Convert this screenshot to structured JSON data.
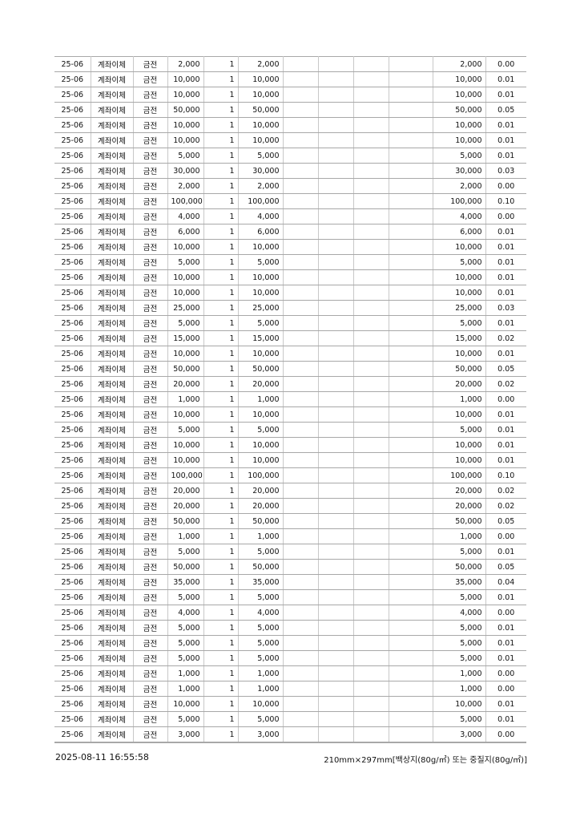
{
  "table": {
    "period": "25-06",
    "method": "계좌이체",
    "type": "금전",
    "quantity": "1",
    "rows": [
      [
        "2,000",
        "0.00"
      ],
      [
        "10,000",
        "0.01"
      ],
      [
        "10,000",
        "0.01"
      ],
      [
        "50,000",
        "0.05"
      ],
      [
        "10,000",
        "0.01"
      ],
      [
        "10,000",
        "0.01"
      ],
      [
        "5,000",
        "0.01"
      ],
      [
        "30,000",
        "0.03"
      ],
      [
        "2,000",
        "0.00"
      ],
      [
        "100,000",
        "0.10"
      ],
      [
        "4,000",
        "0.00"
      ],
      [
        "6,000",
        "0.01"
      ],
      [
        "10,000",
        "0.01"
      ],
      [
        "5,000",
        "0.01"
      ],
      [
        "10,000",
        "0.01"
      ],
      [
        "10,000",
        "0.01"
      ],
      [
        "25,000",
        "0.03"
      ],
      [
        "5,000",
        "0.01"
      ],
      [
        "15,000",
        "0.02"
      ],
      [
        "10,000",
        "0.01"
      ],
      [
        "50,000",
        "0.05"
      ],
      [
        "20,000",
        "0.02"
      ],
      [
        "1,000",
        "0.00"
      ],
      [
        "10,000",
        "0.01"
      ],
      [
        "5,000",
        "0.01"
      ],
      [
        "10,000",
        "0.01"
      ],
      [
        "10,000",
        "0.01"
      ],
      [
        "100,000",
        "0.10"
      ],
      [
        "20,000",
        "0.02"
      ],
      [
        "20,000",
        "0.02"
      ],
      [
        "50,000",
        "0.05"
      ],
      [
        "1,000",
        "0.00"
      ],
      [
        "5,000",
        "0.01"
      ],
      [
        "50,000",
        "0.05"
      ],
      [
        "35,000",
        "0.04"
      ],
      [
        "5,000",
        "0.01"
      ],
      [
        "4,000",
        "0.00"
      ],
      [
        "5,000",
        "0.01"
      ],
      [
        "5,000",
        "0.01"
      ],
      [
        "5,000",
        "0.01"
      ],
      [
        "1,000",
        "0.00"
      ],
      [
        "1,000",
        "0.00"
      ],
      [
        "10,000",
        "0.01"
      ],
      [
        "5,000",
        "0.01"
      ],
      [
        "3,000",
        "0.00"
      ]
    ]
  },
  "footer": {
    "timestamp": "2025-08-11 16:55:58",
    "paper_spec": "210mm×297mm[백상지(80g/㎡) 또는 중질지(80g/㎡)]"
  }
}
